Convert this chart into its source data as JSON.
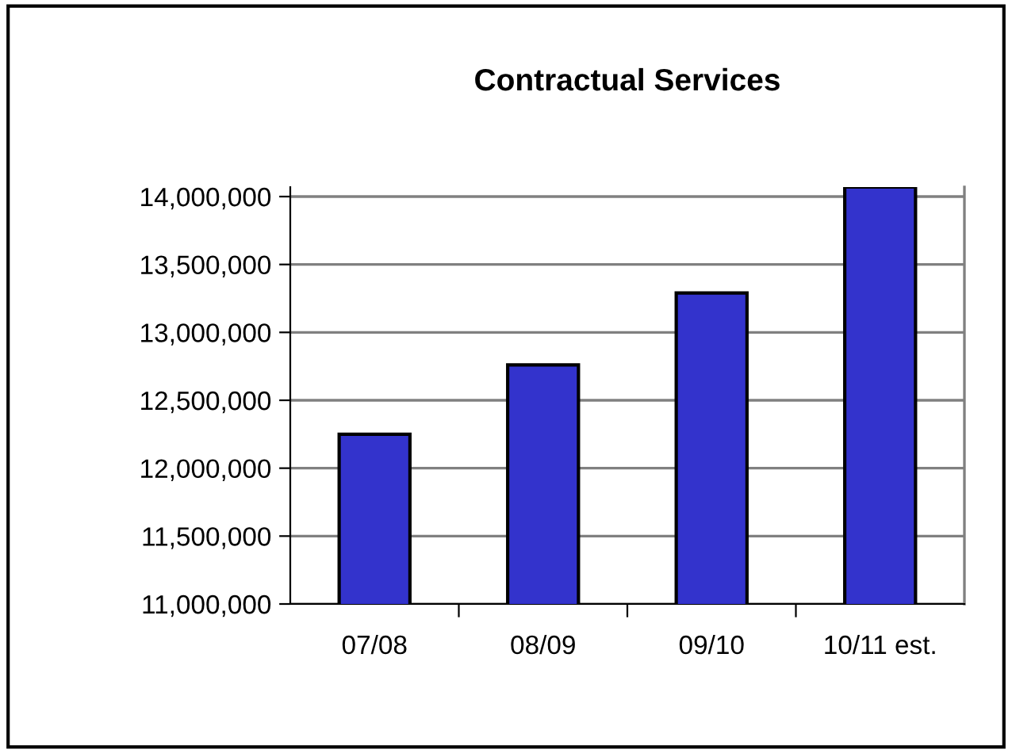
{
  "chart_data": {
    "type": "bar",
    "title": "Contractual Services",
    "categories": [
      "07/08",
      "08/09",
      "09/10",
      "10/11 est."
    ],
    "values": [
      12250000,
      12760000,
      13290000,
      14070000
    ],
    "color": "#3333cc",
    "ylim": [
      11000000,
      14070000
    ],
    "yticks": [
      {
        "value": 11000000,
        "label": "11,000,000"
      },
      {
        "value": 11500000,
        "label": "11,500,000"
      },
      {
        "value": 12000000,
        "label": "12,000,000"
      },
      {
        "value": 12500000,
        "label": "12,500,000"
      },
      {
        "value": 13000000,
        "label": "13,000,000"
      },
      {
        "value": 13500000,
        "label": "13,500,000"
      },
      {
        "value": 14000000,
        "label": "14,000,000"
      }
    ],
    "grid": "y",
    "legend": false
  }
}
